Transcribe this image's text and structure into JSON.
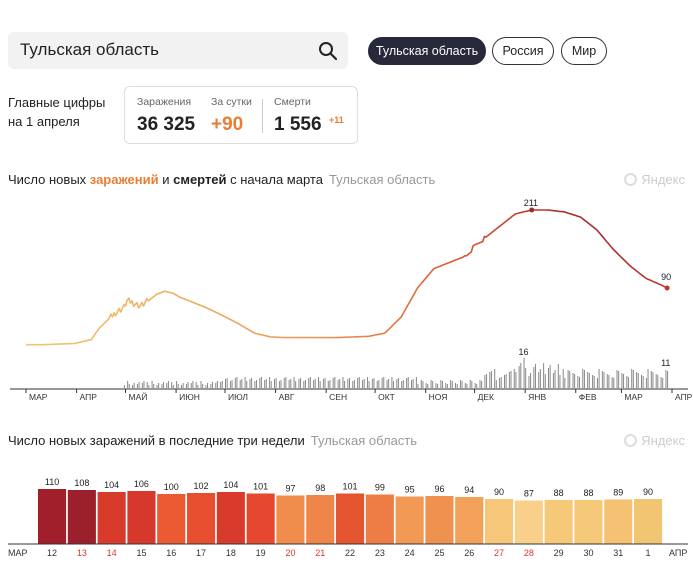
{
  "search": {
    "value": "Тульская область"
  },
  "regions": [
    {
      "label": "Тульская область",
      "active": true
    },
    {
      "label": "Россия",
      "active": false
    },
    {
      "label": "Мир",
      "active": false
    }
  ],
  "summary": {
    "title_line1": "Главные цифры",
    "title_line2": "на 1 апреля",
    "infections_label": "Заражения",
    "infections_value": "36 325",
    "daily_label": "За сутки",
    "daily_value": "+90",
    "deaths_label": "Смерти",
    "deaths_value": "1 556",
    "deaths_delta": "+11"
  },
  "chart1": {
    "title_part1": "Число новых ",
    "title_infections": "заражений",
    "title_and": " и ",
    "title_deaths": "смертей",
    "title_part2": " с начала марта",
    "region": "Тульская область",
    "watermark": "Яндекс"
  },
  "chart2": {
    "title": "Число новых заражений в последние три недели",
    "region": "Тульская область",
    "watermark": "Яндекс"
  },
  "colors": {
    "accent": "#e97e32",
    "bar_dark": "#a01f2b",
    "bar_red": "#d83a2c",
    "bar_orange": "#ec7f44",
    "bar_yellow": "#f2c572",
    "deaths": "#888888"
  },
  "chart_data": [
    {
      "type": "line",
      "title": "Число новых заражений и смертей с начала марта",
      "x_ticks": [
        "МАР",
        "АПР",
        "МАЙ",
        "ИЮН",
        "ИЮЛ",
        "АВГ",
        "СЕН",
        "ОКТ",
        "НОЯ",
        "ДЕК",
        "ЯНВ",
        "ФЕВ",
        "МАР",
        "АПР"
      ],
      "series": [
        {
          "name": "заражения",
          "x": [
            0,
            10,
            20,
            30,
            40,
            45,
            50,
            55,
            60,
            62,
            65,
            70,
            75,
            80,
            85,
            90,
            95,
            100,
            110,
            120,
            130,
            140,
            150,
            160,
            170,
            180,
            190,
            200,
            210,
            220,
            230,
            240,
            250,
            260,
            270,
            275,
            280,
            290,
            300,
            310,
            320,
            330,
            340,
            350,
            360,
            370,
            380,
            390,
            393
          ],
          "values": [
            2,
            2,
            3,
            4,
            10,
            28,
            40,
            52,
            60,
            70,
            68,
            62,
            70,
            80,
            85,
            82,
            75,
            70,
            60,
            48,
            35,
            20,
            14,
            13,
            13,
            13,
            13,
            14,
            15,
            20,
            45,
            90,
            120,
            130,
            140,
            155,
            165,
            185,
            205,
            211,
            211,
            208,
            200,
            180,
            150,
            125,
            105,
            94,
            90
          ]
        },
        {
          "name": "смерти",
          "peaks": [
            {
              "label": "16"
            },
            {
              "label": "11"
            }
          ]
        }
      ],
      "annotations": [
        "211",
        "90",
        "16",
        "11"
      ]
    },
    {
      "type": "bar",
      "title": "Число новых заражений в последние три недели",
      "x_start_label": "МАР",
      "x_end_label": "АПР",
      "categories": [
        "12",
        "13",
        "14",
        "15",
        "16",
        "17",
        "18",
        "19",
        "20",
        "21",
        "22",
        "23",
        "24",
        "25",
        "26",
        "27",
        "28",
        "29",
        "30",
        "31",
        "1"
      ],
      "values": [
        110,
        108,
        104,
        106,
        100,
        102,
        104,
        101,
        97,
        98,
        101,
        99,
        95,
        96,
        94,
        90,
        87,
        88,
        88,
        89,
        90
      ],
      "weekend": [
        false,
        true,
        true,
        false,
        false,
        false,
        false,
        false,
        true,
        true,
        false,
        false,
        false,
        false,
        false,
        true,
        true,
        false,
        false,
        false,
        false
      ]
    }
  ]
}
